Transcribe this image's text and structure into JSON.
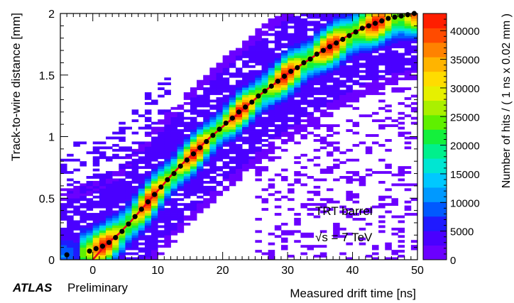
{
  "chart_data": {
    "type": "heatmap",
    "xlabel": "Measured drift time [ns]",
    "ylabel": "Track-to-wire distance [mm]",
    "zlabel": "Number of hits / ( 1 ns x 0.02 mm )",
    "xlim": [
      -5,
      50
    ],
    "ylim": [
      0,
      2
    ],
    "zlim": [
      0,
      43000
    ],
    "x_ticks": [
      "0",
      "10",
      "20",
      "30",
      "40",
      "50"
    ],
    "y_ticks": [
      "0",
      "0.5",
      "1",
      "1.5",
      "2"
    ],
    "z_ticks": [
      "0",
      "5000",
      "10000",
      "15000",
      "20000",
      "25000",
      "30000",
      "35000",
      "40000"
    ],
    "legend_text": [
      "TRT barrel",
      "√s = 7 TeV"
    ],
    "footer": {
      "brand": "ATLAS",
      "status": "Preliminary"
    },
    "colormap": [
      "#6b00ff",
      "#4a00ff",
      "#1f1aff",
      "#0059ff",
      "#0099ff",
      "#00c8ff",
      "#00e6d2",
      "#00f08c",
      "#14f03c",
      "#5ff000",
      "#aaf000",
      "#e6f000",
      "#ffdc00",
      "#ffb400",
      "#ff8200",
      "#ff4b00",
      "#ff1e00"
    ],
    "grid": false,
    "profile_points": [
      {
        "x": -4,
        "y": 0.04
      },
      {
        "x": -0.5,
        "y": 0.07
      },
      {
        "x": 0.5,
        "y": 0.09
      },
      {
        "x": 1.5,
        "y": 0.11
      },
      {
        "x": 2.5,
        "y": 0.14
      },
      {
        "x": 3.5,
        "y": 0.18
      },
      {
        "x": 4.5,
        "y": 0.23
      },
      {
        "x": 5.5,
        "y": 0.29
      },
      {
        "x": 6.5,
        "y": 0.35
      },
      {
        "x": 7.5,
        "y": 0.41
      },
      {
        "x": 8.5,
        "y": 0.47
      },
      {
        "x": 9.5,
        "y": 0.53
      },
      {
        "x": 10.5,
        "y": 0.59
      },
      {
        "x": 11.5,
        "y": 0.65
      },
      {
        "x": 12.5,
        "y": 0.7
      },
      {
        "x": 13.5,
        "y": 0.76
      },
      {
        "x": 14.5,
        "y": 0.81
      },
      {
        "x": 15.5,
        "y": 0.86
      },
      {
        "x": 16.5,
        "y": 0.91
      },
      {
        "x": 17.5,
        "y": 0.96
      },
      {
        "x": 18.5,
        "y": 1.01
      },
      {
        "x": 19.5,
        "y": 1.06
      },
      {
        "x": 20.5,
        "y": 1.11
      },
      {
        "x": 21.5,
        "y": 1.15
      },
      {
        "x": 22.5,
        "y": 1.2
      },
      {
        "x": 23.5,
        "y": 1.24
      },
      {
        "x": 24.5,
        "y": 1.28
      },
      {
        "x": 25.5,
        "y": 1.33
      },
      {
        "x": 26.5,
        "y": 1.37
      },
      {
        "x": 27.5,
        "y": 1.41
      },
      {
        "x": 28.5,
        "y": 1.45
      },
      {
        "x": 29.5,
        "y": 1.49
      },
      {
        "x": 30.5,
        "y": 1.53
      },
      {
        "x": 31.5,
        "y": 1.56
      },
      {
        "x": 32.5,
        "y": 1.6
      },
      {
        "x": 33.5,
        "y": 1.63
      },
      {
        "x": 34.5,
        "y": 1.67
      },
      {
        "x": 35.5,
        "y": 1.7
      },
      {
        "x": 36.5,
        "y": 1.73
      },
      {
        "x": 37.5,
        "y": 1.76
      },
      {
        "x": 38.5,
        "y": 1.79
      },
      {
        "x": 39.5,
        "y": 1.82
      },
      {
        "x": 40.5,
        "y": 1.85
      },
      {
        "x": 41.5,
        "y": 1.88
      },
      {
        "x": 42.5,
        "y": 1.9
      },
      {
        "x": 43.5,
        "y": 1.92
      },
      {
        "x": 44.5,
        "y": 1.94
      },
      {
        "x": 45.5,
        "y": 1.96
      },
      {
        "x": 46.5,
        "y": 1.97
      },
      {
        "x": 47.5,
        "y": 1.98
      },
      {
        "x": 48.5,
        "y": 1.99
      },
      {
        "x": 49.5,
        "y": 2.0
      }
    ],
    "fit_curve": {
      "color": "#e8001a",
      "points": [
        {
          "x": 0,
          "y": 0.0
        },
        {
          "x": 2,
          "y": 0.12
        },
        {
          "x": 4,
          "y": 0.21
        },
        {
          "x": 6,
          "y": 0.32
        },
        {
          "x": 8,
          "y": 0.44
        },
        {
          "x": 10,
          "y": 0.56
        },
        {
          "x": 12,
          "y": 0.68
        },
        {
          "x": 14,
          "y": 0.79
        },
        {
          "x": 16,
          "y": 0.89
        },
        {
          "x": 18,
          "y": 0.99
        },
        {
          "x": 20,
          "y": 1.08
        },
        {
          "x": 22,
          "y": 1.17
        },
        {
          "x": 24,
          "y": 1.26
        },
        {
          "x": 26,
          "y": 1.35
        },
        {
          "x": 28,
          "y": 1.43
        },
        {
          "x": 30,
          "y": 1.51
        },
        {
          "x": 32,
          "y": 1.58
        },
        {
          "x": 34,
          "y": 1.65
        },
        {
          "x": 36,
          "y": 1.72
        },
        {
          "x": 38,
          "y": 1.78
        },
        {
          "x": 40,
          "y": 1.84
        },
        {
          "x": 42,
          "y": 1.89
        },
        {
          "x": 44,
          "y": 1.93
        },
        {
          "x": 45,
          "y": 1.95
        }
      ]
    }
  }
}
